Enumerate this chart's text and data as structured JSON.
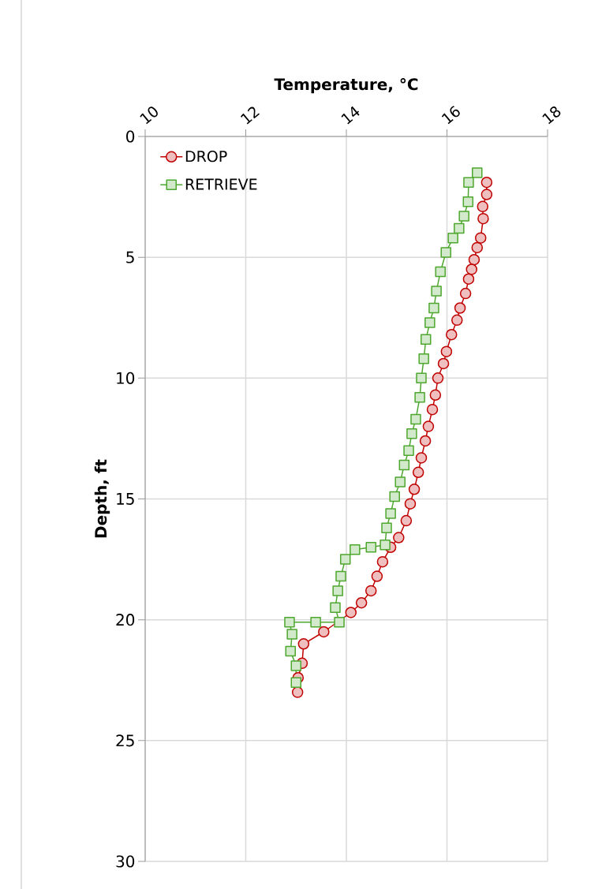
{
  "chart_data": {
    "type": "line",
    "xlabel": "Temperature, °C",
    "ylabel": "Depth, ft",
    "xlim": [
      10,
      18
    ],
    "xticks": [
      10,
      12,
      14,
      16,
      18
    ],
    "ylim": [
      30,
      0
    ],
    "yticks": [
      0,
      5,
      10,
      15,
      20,
      25,
      30
    ],
    "grid": true,
    "legend": "top left",
    "line_style": "solid",
    "series": [
      {
        "name": "DROP",
        "color": "#c00000",
        "marker": "circle",
        "x": [
          16.79,
          16.79,
          16.71,
          16.72,
          16.67,
          16.6,
          16.54,
          16.49,
          16.43,
          16.37,
          16.26,
          16.2,
          16.09,
          15.99,
          15.93,
          15.82,
          15.77,
          15.71,
          15.63,
          15.57,
          15.49,
          15.43,
          15.35,
          15.27,
          15.19,
          15.04,
          14.88,
          14.72,
          14.61,
          14.49,
          14.3,
          14.09,
          13.86,
          13.55,
          13.15,
          13.12,
          13.04,
          13.03
        ],
        "values": [
          1.9,
          2.4,
          2.9,
          3.4,
          4.2,
          4.6,
          5.1,
          5.5,
          5.9,
          6.5,
          7.1,
          7.6,
          8.2,
          8.9,
          9.4,
          10.0,
          10.7,
          11.3,
          12.0,
          12.6,
          13.3,
          13.9,
          14.6,
          15.2,
          15.9,
          16.6,
          17.0,
          17.6,
          18.2,
          18.8,
          19.3,
          19.7,
          null,
          20.5,
          21.0,
          21.8,
          22.4,
          23.0
        ]
      },
      {
        "name": "RETRIEVE",
        "color": "#4ea72e",
        "marker": "square",
        "x": [
          13.0,
          13.0,
          12.89,
          12.92,
          12.87,
          13.39,
          13.86,
          13.78,
          13.83,
          13.89,
          13.98,
          14.17,
          14.49,
          14.77,
          14.8,
          14.88,
          14.96,
          15.07,
          15.15,
          15.24,
          15.3,
          15.38,
          15.46,
          15.49,
          15.54,
          15.58,
          15.66,
          15.74,
          15.79,
          15.87,
          15.98,
          16.12,
          16.24,
          16.34,
          16.42,
          16.43,
          16.6
        ],
        "values": [
          22.6,
          21.9,
          21.3,
          20.6,
          20.1,
          20.1,
          20.1,
          19.5,
          18.8,
          18.2,
          17.5,
          17.1,
          17.0,
          16.9,
          16.2,
          15.6,
          14.9,
          14.3,
          13.6,
          13.0,
          12.3,
          11.7,
          10.8,
          10.0,
          9.2,
          8.4,
          7.7,
          7.1,
          6.4,
          5.6,
          4.8,
          4.2,
          3.8,
          3.3,
          2.7,
          1.9,
          1.5
        ]
      }
    ]
  }
}
